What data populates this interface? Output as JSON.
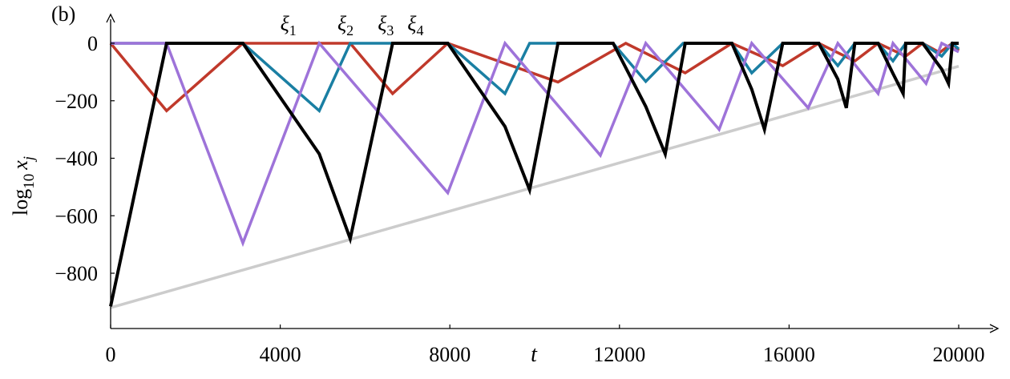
{
  "chart_data": {
    "type": "line",
    "panel_label": "(b)",
    "xlabel": "t",
    "ylabel_main": "log",
    "ylabel_sub": "10",
    "ylabel_var": "x",
    "ylabel_var_sub": "j",
    "xlim": [
      0,
      21000
    ],
    "ylim": [
      -1000,
      100
    ],
    "xticks": [
      0,
      4000,
      8000,
      12000,
      16000,
      20000
    ],
    "xtick_labels": [
      "0",
      "4000",
      "8000",
      "12000",
      "16000",
      "20000"
    ],
    "yticks": [
      0,
      -200,
      -400,
      -600,
      -800
    ],
    "ytick_labels": [
      "0",
      "−200",
      "−400",
      "−600",
      "−800"
    ],
    "grid": false,
    "annotations": [
      {
        "text": "ξ",
        "sub": "1",
        "x": 4000,
        "y": 55
      },
      {
        "text": "ξ",
        "sub": "2",
        "x": 5350,
        "y": 55
      },
      {
        "text": "ξ",
        "sub": "3",
        "x": 6300,
        "y": 55
      },
      {
        "text": "ξ",
        "sub": "4",
        "x": 7000,
        "y": 55
      }
    ],
    "series": [
      {
        "color": "#c0392b",
        "x": [
          0,
          1320,
          3120,
          5650,
          6650,
          7950,
          10550,
          12150,
          13550,
          14650,
          15850,
          16700,
          17550,
          18100,
          18750,
          19150,
          19550,
          19850,
          20000
        ],
        "y": [
          0,
          -235,
          0,
          0,
          -175,
          0,
          -135,
          0,
          -103,
          0,
          -78,
          0,
          -62,
          0,
          -45,
          0,
          -32,
          0,
          -25
        ]
      },
      {
        "color": "#1a7fa3",
        "x": [
          0,
          3120,
          4920,
          5650,
          7950,
          9300,
          9880,
          11850,
          12620,
          13500,
          14650,
          15120,
          15850,
          16700,
          17150,
          17550,
          18100,
          18450,
          18750,
          19150,
          19600,
          19850,
          20000
        ],
        "y": [
          0,
          0,
          -235,
          0,
          0,
          -175,
          0,
          0,
          -133,
          0,
          0,
          -103,
          0,
          0,
          -78,
          0,
          0,
          -62,
          0,
          0,
          -45,
          0,
          -20
        ]
      },
      {
        "color": "#9e73d9",
        "x": [
          0,
          1320,
          3120,
          4920,
          7950,
          9300,
          11550,
          12620,
          14350,
          15120,
          16450,
          17150,
          18100,
          18450,
          19230,
          19600,
          20000
        ],
        "y": [
          0,
          0,
          -695,
          0,
          -520,
          0,
          -390,
          0,
          -300,
          0,
          -225,
          0,
          -175,
          0,
          -140,
          0,
          -30
        ]
      },
      {
        "color": "#000000",
        "x": [
          0,
          1320,
          3120,
          4920,
          5650,
          6650,
          7950,
          9300,
          9880,
          10550,
          11850,
          12620,
          13080,
          13550,
          14650,
          15120,
          15420,
          15850,
          16700,
          17150,
          17350,
          17550,
          18100,
          18450,
          18690,
          18750,
          19150,
          19600,
          19760,
          19850,
          20000
        ],
        "y": [
          -915,
          0,
          0,
          -385,
          -680,
          0,
          0,
          -290,
          -510,
          0,
          0,
          -220,
          -385,
          0,
          0,
          -160,
          -300,
          0,
          0,
          -125,
          -225,
          0,
          0,
          -105,
          -175,
          0,
          0,
          -90,
          -140,
          0,
          0
        ]
      },
      {
        "color": "#cccccc",
        "x": [
          0,
          20000
        ],
        "y": [
          -920,
          -80
        ]
      }
    ]
  }
}
